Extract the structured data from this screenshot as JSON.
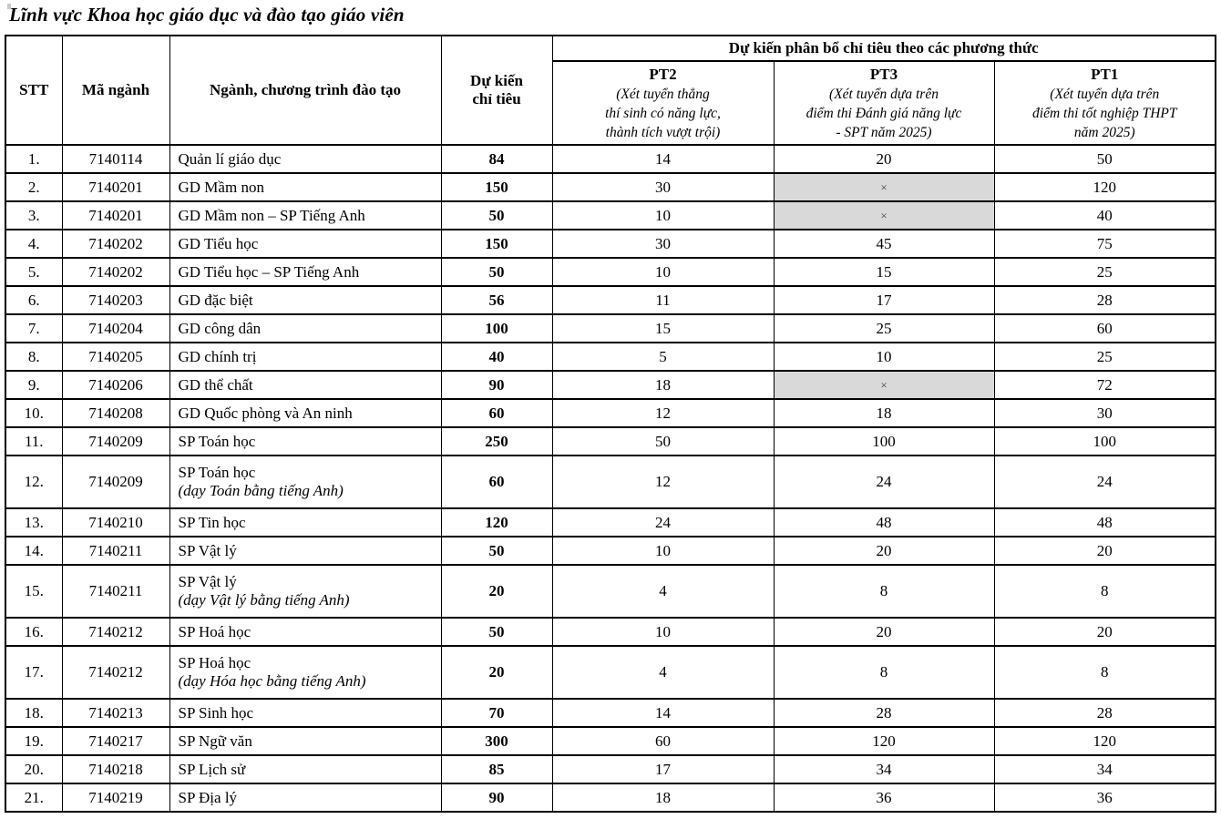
{
  "title": "Lĩnh vực Khoa học giáo dục và đào tạo giáo viên",
  "table": {
    "headers": {
      "stt": "STT",
      "code": "Mã ngành",
      "program": "Ngành, chương trình đào tạo",
      "quota": "Dự kiến\nchỉ tiêu",
      "allocation": "Dự kiến phân bổ chỉ tiêu theo các phương thức",
      "pt2_name": "PT2",
      "pt2_note": "(Xét tuyển thẳng\nthí sinh có năng lực,\nthành tích vượt trội)",
      "pt3_name": "PT3",
      "pt3_note": "(Xét tuyển dựa trên\nđiểm thi Đánh giá năng lực\n- SPT năm 2025)",
      "pt1_name": "PT1",
      "pt1_note": "(Xét tuyển dựa trên\nđiểm thi tốt nghiệp THPT\nnăm 2025)"
    },
    "no_data_symbol": "×",
    "shaded_color": "#d9d9d9",
    "rows": [
      {
        "stt": "1.",
        "code": "7140114",
        "program": "Quản lí giáo dục",
        "quota": "84",
        "pt2": "14",
        "pt3": "20",
        "pt1": "50"
      },
      {
        "stt": "2.",
        "code": "7140201",
        "program": "GD Mầm non",
        "quota": "150",
        "pt2": "30",
        "pt3": "×",
        "pt3_shaded": true,
        "pt1": "120"
      },
      {
        "stt": "3.",
        "code": "7140201",
        "program": "GD Mầm non – SP Tiếng Anh",
        "quota": "50",
        "pt2": "10",
        "pt3": "×",
        "pt3_shaded": true,
        "pt1": "40"
      },
      {
        "stt": "4.",
        "code": "7140202",
        "program": "GD Tiểu học",
        "quota": "150",
        "pt2": "30",
        "pt3": "45",
        "pt1": "75"
      },
      {
        "stt": "5.",
        "code": "7140202",
        "program": "GD Tiểu học – SP Tiếng Anh",
        "quota": "50",
        "pt2": "10",
        "pt3": "15",
        "pt1": "25"
      },
      {
        "stt": "6.",
        "code": "7140203",
        "program": "GD đặc biệt",
        "quota": "56",
        "pt2": "11",
        "pt3": "17",
        "pt1": "28"
      },
      {
        "stt": "7.",
        "code": "7140204",
        "program": "GD công dân",
        "quota": "100",
        "pt2": "15",
        "pt3": "25",
        "pt1": "60"
      },
      {
        "stt": "8.",
        "code": "7140205",
        "program": "GD chính trị",
        "quota": "40",
        "pt2": "5",
        "pt3": "10",
        "pt1": "25"
      },
      {
        "stt": "9.",
        "code": "7140206",
        "program": "GD thể chất",
        "quota": "90",
        "pt2": "18",
        "pt3": "×",
        "pt3_shaded": true,
        "pt1": "72"
      },
      {
        "stt": "10.",
        "code": "7140208",
        "program": "GD Quốc phòng và An ninh",
        "quota": "60",
        "pt2": "12",
        "pt3": "18",
        "pt1": "30"
      },
      {
        "stt": "11.",
        "code": "7140209",
        "program": "SP Toán học",
        "quota": "250",
        "pt2": "50",
        "pt3": "100",
        "pt1": "100"
      },
      {
        "stt": "12.",
        "code": "7140209",
        "program": "SP Toán học",
        "program_note": "(dạy Toán bằng tiếng Anh)",
        "quota": "60",
        "pt2": "12",
        "pt3": "24",
        "pt1": "24"
      },
      {
        "stt": "13.",
        "code": "7140210",
        "program": "SP Tin học",
        "quota": "120",
        "pt2": "24",
        "pt3": "48",
        "pt1": "48"
      },
      {
        "stt": "14.",
        "code": "7140211",
        "program": "SP Vật lý",
        "quota": "50",
        "pt2": "10",
        "pt3": "20",
        "pt1": "20"
      },
      {
        "stt": "15.",
        "code": "7140211",
        "program": "SP Vật lý",
        "program_note": "(dạy Vật lý bằng tiếng Anh)",
        "quota": "20",
        "pt2": "4",
        "pt3": "8",
        "pt1": "8"
      },
      {
        "stt": "16.",
        "code": "7140212",
        "program": "SP Hoá học",
        "quota": "50",
        "pt2": "10",
        "pt3": "20",
        "pt1": "20"
      },
      {
        "stt": "17.",
        "code": "7140212",
        "program": "SP Hoá học",
        "program_note": "(dạy Hóa học bằng tiếng Anh)",
        "quota": "20",
        "pt2": "4",
        "pt3": "8",
        "pt1": "8"
      },
      {
        "stt": "18.",
        "code": "7140213",
        "program": "SP Sinh học",
        "quota": "70",
        "pt2": "14",
        "pt3": "28",
        "pt1": "28"
      },
      {
        "stt": "19.",
        "code": "7140217",
        "program": "SP Ngữ văn",
        "quota": "300",
        "pt2": "60",
        "pt3": "120",
        "pt1": "120"
      },
      {
        "stt": "20.",
        "code": "7140218",
        "program": "SP Lịch sử",
        "quota": "85",
        "pt2": "17",
        "pt3": "34",
        "pt1": "34"
      },
      {
        "stt": "21.",
        "code": "7140219",
        "program": "SP Địa lý",
        "quota": "90",
        "pt2": "18",
        "pt3": "36",
        "pt1": "36"
      }
    ]
  }
}
